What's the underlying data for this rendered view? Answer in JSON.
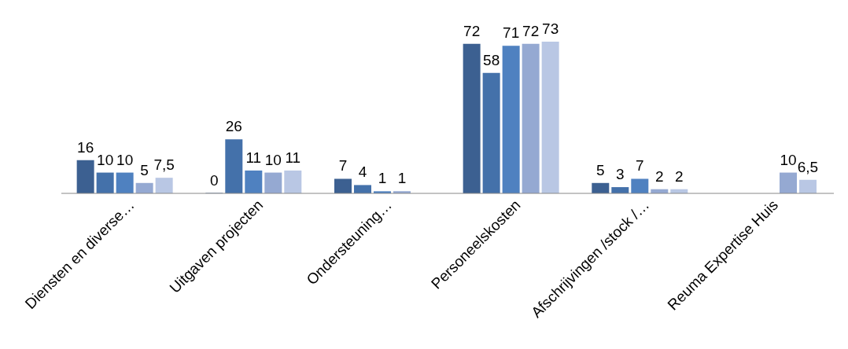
{
  "chart_data": {
    "type": "bar",
    "categories": [
      "Diensten en diverse…",
      "Uitgaven projecten",
      "Ondersteuning…",
      "Personeelskosten",
      "Afschrijvingen /stock /…",
      "Reuma Expertise Huis"
    ],
    "series": [
      {
        "color": "#3c6091",
        "values": [
          16,
          0,
          7,
          72,
          5,
          null
        ],
        "value_labels": [
          "16",
          "0",
          "7",
          "72",
          "5",
          null
        ]
      },
      {
        "color": "#4471aa",
        "values": [
          10,
          26,
          4,
          58,
          3,
          null
        ],
        "value_labels": [
          "10",
          "26",
          "4",
          "58",
          "3",
          null
        ]
      },
      {
        "color": "#4f81c0",
        "values": [
          10,
          11,
          1,
          71,
          7,
          null
        ],
        "value_labels": [
          "10",
          "11",
          "1",
          "71",
          "7",
          null
        ]
      },
      {
        "color": "#95a9d2",
        "values": [
          5,
          10,
          1,
          72,
          2,
          10
        ],
        "value_labels": [
          "5",
          "10",
          "1",
          "72",
          "2",
          "10"
        ]
      },
      {
        "color": "#b9c7e4",
        "values": [
          7.5,
          11,
          null,
          73,
          2,
          6.5
        ],
        "value_labels": [
          "7,5",
          "11",
          null,
          "73",
          "2",
          "6,5"
        ]
      }
    ],
    "grid": false,
    "legend": false
  }
}
